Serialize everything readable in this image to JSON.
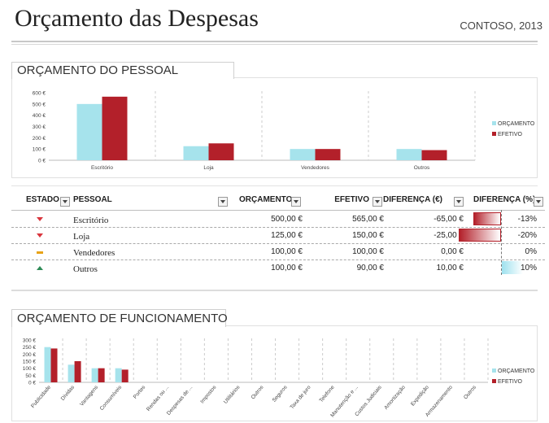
{
  "header": {
    "title": "Orçamento das Despesas",
    "subtitle": "CONTOSO, 2013"
  },
  "colors": {
    "orcamento": "#a6e3ec",
    "efetivo": "#b3202a"
  },
  "pessoal_chart": {
    "section_title": "ORÇAMENTO DO PESSOAL",
    "chart_data": {
      "type": "bar",
      "categories": [
        "Escritório",
        "Loja",
        "Vendedores",
        "Outros"
      ],
      "series": [
        {
          "name": "ORÇAMENTO",
          "values": [
            500,
            125,
            100,
            100
          ]
        },
        {
          "name": "EFETIVO",
          "values": [
            565,
            150,
            100,
            90
          ]
        }
      ],
      "yticks": [
        "600 €",
        "500 €",
        "400 €",
        "300 €",
        "200 €",
        "100 €",
        "0 €"
      ],
      "ylim": [
        0,
        600
      ],
      "legend": "right"
    }
  },
  "table": {
    "headers": {
      "estado": "ESTADO",
      "pessoal": "PESSOAL",
      "orcamento": "ORÇAMENTO",
      "efetivo": "EFETIVO",
      "diferenca": "DIFERENÇA (€)",
      "diferenca_pct": "DIFERENÇA (%)"
    },
    "rows": [
      {
        "status": "down-icon",
        "name": "Escritório",
        "orcamento": "500,00 €",
        "efetivo": "565,00 €",
        "diferenca": "-65,00 €",
        "pct": "-13%",
        "pct_value": -0.13
      },
      {
        "status": "down-icon",
        "name": "Loja",
        "orcamento": "125,00 €",
        "efetivo": "150,00 €",
        "diferenca": "-25,00 €",
        "pct": "-20%",
        "pct_value": -0.2
      },
      {
        "status": "flat-icon",
        "name": "Vendedores",
        "orcamento": "100,00 €",
        "efetivo": "100,00 €",
        "diferenca": "0,00 €",
        "pct": "0%",
        "pct_value": 0
      },
      {
        "status": "up-icon",
        "name": "Outros",
        "orcamento": "100,00 €",
        "efetivo": "90,00 €",
        "diferenca": "10,00 €",
        "pct": "10%",
        "pct_value": 0.1
      }
    ]
  },
  "funcionamento_chart": {
    "section_title": "ORÇAMENTO DE FUNCIONAMENTO",
    "chart_data": {
      "type": "bar",
      "categories": [
        "Publicidade",
        "Dívidas",
        "Vantagens",
        "Consumíveis",
        "Portes",
        "Rendas ou ...",
        "Despesas de ...",
        "Impostos",
        "Utilitários",
        "Outros",
        "Seguros",
        "Taxa de juro",
        "Telefone",
        "Manutenção e ...",
        "Custos Judiciais",
        "Amortização",
        "Expedição",
        "Armazenamento",
        "Outros"
      ],
      "series": [
        {
          "name": "ORÇAMENTO",
          "values": [
            250,
            125,
            100,
            100,
            0,
            0,
            0,
            0,
            0,
            0,
            0,
            0,
            0,
            0,
            0,
            0,
            0,
            0,
            0
          ]
        },
        {
          "name": "EFETIVO",
          "values": [
            240,
            150,
            100,
            90,
            0,
            0,
            0,
            0,
            0,
            0,
            0,
            0,
            0,
            0,
            0,
            0,
            0,
            0,
            0
          ]
        }
      ],
      "yticks": [
        "300 €",
        "250 €",
        "200 €",
        "150 €",
        "100 €",
        "50 €",
        "0 €"
      ],
      "ylim": [
        0,
        300
      ],
      "legend": "right"
    }
  }
}
